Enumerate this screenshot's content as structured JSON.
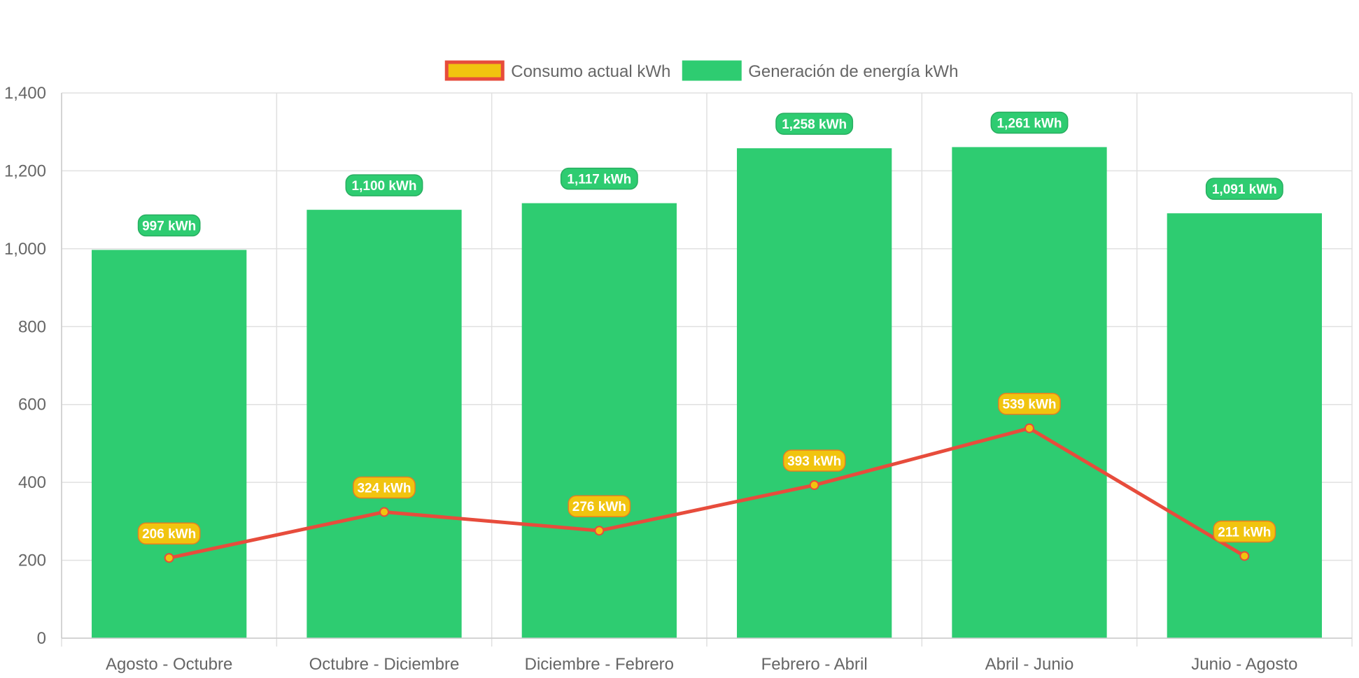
{
  "chart_data": {
    "type": "bar",
    "categories": [
      "Agosto - Octubre",
      "Octubre - Diciembre",
      "Diciembre - Febrero",
      "Febrero - Abril",
      "Abril - Junio",
      "Junio - Agosto"
    ],
    "series": [
      {
        "name": "Generación de energía kWh",
        "type": "bar",
        "values": [
          997,
          1100,
          1117,
          1258,
          1261,
          1091
        ],
        "labels": [
          "997 kWh",
          "1,100 kWh",
          "1,117 kWh",
          "1,258 kWh",
          "1,261 kWh",
          "1,091 kWh"
        ],
        "color": "#2ecc71"
      },
      {
        "name": "Consumo actual kWh",
        "type": "line",
        "values": [
          206,
          324,
          276,
          393,
          539,
          211
        ],
        "labels": [
          "206 kWh",
          "324 kWh",
          "276 kWh",
          "393 kWh",
          "539 kWh",
          "211 kWh"
        ],
        "color": "#e74c3c",
        "fill": "#f1c40f"
      }
    ],
    "legend": [
      {
        "name": "Consumo actual kWh",
        "fill": "#f1c40f",
        "stroke": "#e74c3c"
      },
      {
        "name": "Generación de energía kWh",
        "fill": "#2ecc71",
        "stroke": "#2ecc71"
      }
    ],
    "legend_position": "top",
    "ylim": [
      0,
      1400
    ],
    "yticks": [
      0,
      200,
      400,
      600,
      800,
      1000,
      1200,
      1400
    ],
    "ytick_labels": [
      "0",
      "200",
      "400",
      "600",
      "800",
      "1,000",
      "1,200",
      "1,400"
    ],
    "grid": true,
    "title": "",
    "xlabel": "",
    "ylabel": ""
  }
}
